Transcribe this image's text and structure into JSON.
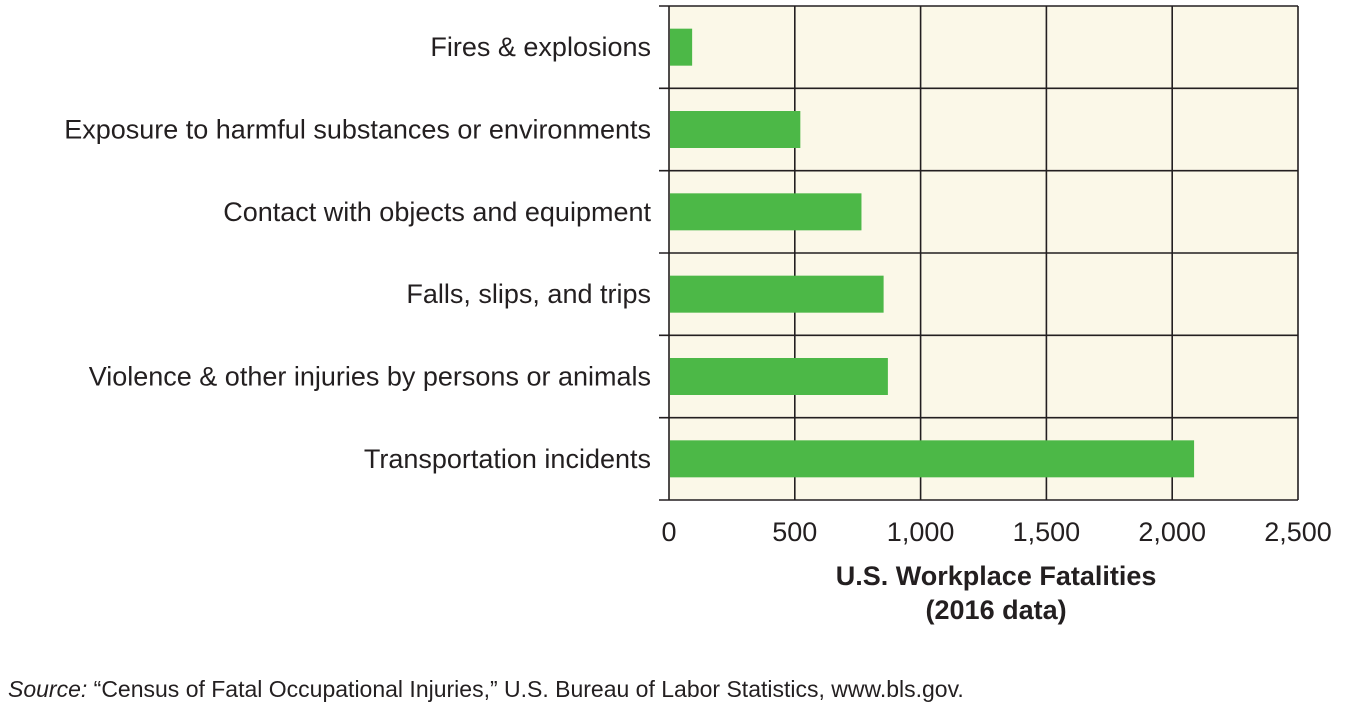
{
  "chart_data": {
    "type": "bar",
    "orientation": "horizontal",
    "categories": [
      "Fires & explosions",
      "Exposure to harmful substances or environments",
      "Contact with objects and equipment",
      "Falls, slips, and trips",
      "Violence & other injuries by persons or animals",
      "Transportation incidents"
    ],
    "values": [
      88,
      518,
      761,
      849,
      866,
      2083
    ],
    "xlim": [
      0,
      2500
    ],
    "xticks": [
      0,
      500,
      1000,
      1500,
      2000,
      2500
    ],
    "xtick_labels": [
      "0",
      "500",
      "1,000",
      "1,500",
      "2,000",
      "2,500"
    ],
    "xlabel_lines": [
      "U.S. Workplace Fatalities",
      "(2016 data)"
    ],
    "grid": true,
    "colors": {
      "bar": "#4cb847",
      "plot_background": "#fbf8e8",
      "grid": "#231f20"
    }
  },
  "source": {
    "prefix": "Source:",
    "text": " “Census of Fatal Occupational Injuries,” U.S. Bureau of Labor Statistics, www.bls.gov."
  }
}
